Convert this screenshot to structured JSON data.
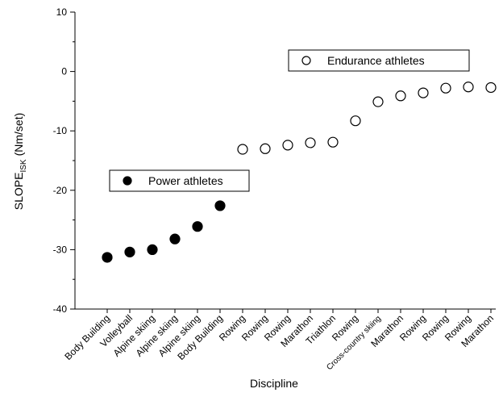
{
  "chart_data": {
    "type": "scatter",
    "x_label": "Discipline",
    "y_label": "SLOPE",
    "y_label_sub": "ISK",
    "y_label_unit": "(Nm/set)",
    "categories": [
      "Body Building",
      "Volleyball",
      "Alpine skiing",
      "Alpine skiing",
      "Alpine skiing",
      "Body Building",
      "Rowing",
      "Rowing",
      "Rowing",
      "Marathon",
      "Triathlon",
      "Rowing",
      "Cross-country skiing",
      "Marathon",
      "Rowing",
      "Rowing",
      "Rowing",
      "Marathon"
    ],
    "series": [
      {
        "name": "Power athletes",
        "color": "#000000",
        "filled": true,
        "values": [
          -31.3,
          -30.4,
          -30.0,
          -28.2,
          -26.1,
          -22.6,
          null,
          null,
          null,
          null,
          null,
          null,
          null,
          null,
          null,
          null,
          null,
          null
        ]
      },
      {
        "name": "Endurance athletes",
        "color": "#000000",
        "filled": false,
        "values": [
          null,
          null,
          null,
          null,
          null,
          null,
          -13.1,
          -13.0,
          -12.4,
          -12.0,
          -11.9,
          -8.3,
          -5.1,
          -4.1,
          -3.6,
          -2.8,
          -2.6,
          -2.7
        ]
      }
    ],
    "ylim": [
      -40,
      10
    ],
    "yticks": [
      -40,
      -30,
      -20,
      -10,
      0,
      10
    ],
    "grid": false
  }
}
